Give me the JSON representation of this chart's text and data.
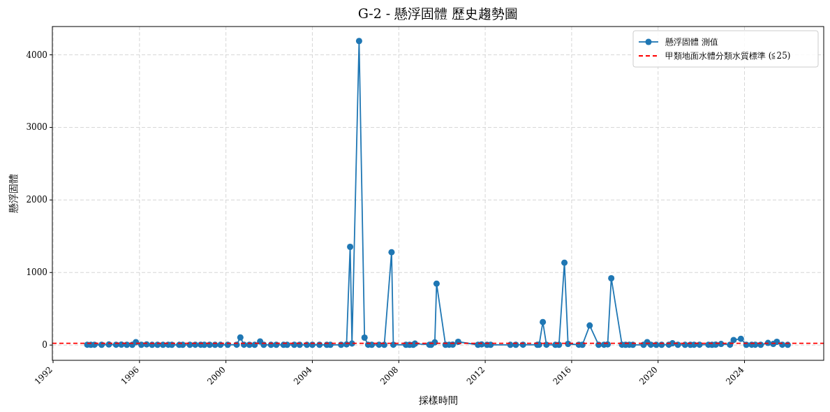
{
  "chart_data": {
    "type": "line",
    "title": "G-2 - 懸浮固體 歷史趨勢圖",
    "xlabel": "採樣時間",
    "ylabel": "懸浮固體",
    "x": [
      "1993-08",
      "1993-10",
      "1993-12",
      "1994-04",
      "1994-08",
      "1994-12",
      "1995-03",
      "1995-06",
      "1995-09",
      "1995-11",
      "1996-02",
      "1996-05",
      "1996-08",
      "1996-11",
      "1997-02",
      "1997-05",
      "1997-07",
      "1997-11",
      "1998-01",
      "1998-05",
      "1998-08",
      "1998-11",
      "1999-01",
      "1999-04",
      "1999-07",
      "1999-10",
      "2000-02",
      "2000-07",
      "2000-09",
      "2000-11",
      "2001-02",
      "2001-05",
      "2001-08",
      "2001-10",
      "2002-02",
      "2002-05",
      "2002-09",
      "2002-11",
      "2003-03",
      "2003-06",
      "2003-10",
      "2004-01",
      "2004-05",
      "2004-09",
      "2004-11",
      "2005-05",
      "2005-08",
      "2005-10",
      "2005-11",
      "2006-03",
      "2006-06",
      "2006-08",
      "2006-10",
      "2007-02",
      "2007-05",
      "2007-09",
      "2007-10",
      "2008-05",
      "2008-07",
      "2008-09",
      "2008-10",
      "2009-06",
      "2009-07",
      "2009-09",
      "2009-10",
      "2010-03",
      "2010-05",
      "2010-07",
      "2010-10",
      "2011-09",
      "2011-11",
      "2012-02",
      "2012-04",
      "2013-03",
      "2013-06",
      "2013-10",
      "2014-06",
      "2014-07",
      "2014-09",
      "2014-11",
      "2015-04",
      "2015-06",
      "2015-09",
      "2015-11",
      "2016-05",
      "2016-07",
      "2016-11",
      "2017-04",
      "2017-07",
      "2017-09",
      "2017-11",
      "2018-05",
      "2018-07",
      "2018-09",
      "2018-11",
      "2019-05",
      "2019-07",
      "2019-09",
      "2019-12",
      "2020-03",
      "2020-07",
      "2020-09",
      "2020-12",
      "2021-04",
      "2021-07",
      "2021-09",
      "2021-12",
      "2022-05",
      "2022-07",
      "2022-09",
      "2022-12",
      "2023-05",
      "2023-07",
      "2023-11",
      "2024-02",
      "2024-05",
      "2024-07",
      "2024-10",
      "2025-02",
      "2025-05",
      "2025-07",
      "2025-10",
      "2026-01"
    ],
    "series": [
      {
        "name": "懸浮固體 測值",
        "color": "#1f77b4",
        "values": [
          5,
          3,
          5,
          4,
          8,
          5,
          6,
          4,
          3,
          40,
          4,
          10,
          3,
          4,
          3,
          5,
          4,
          3,
          3,
          4,
          5,
          5,
          3,
          4,
          3,
          3,
          4,
          5,
          105,
          5,
          4,
          3,
          50,
          4,
          3,
          4,
          3,
          3,
          4,
          4,
          3,
          4,
          4,
          3,
          3,
          4,
          10,
          1354,
          22,
          4190,
          103,
          5,
          4,
          5,
          3,
          1280,
          5,
          4,
          3,
          4,
          20,
          5,
          4,
          38,
          847,
          4,
          5,
          6,
          45,
          4,
          10,
          3,
          4,
          3,
          4,
          5,
          4,
          5,
          318,
          5,
          3,
          4,
          1136,
          16,
          5,
          4,
          270,
          4,
          5,
          10,
          921,
          5,
          4,
          5,
          3,
          4,
          40,
          5,
          3,
          4,
          5,
          25,
          4,
          3,
          4,
          5,
          5,
          5,
          4,
          6,
          15,
          5,
          70,
          87,
          4,
          5,
          5,
          4,
          30,
          15,
          45,
          5,
          3
        ]
      }
    ],
    "ref_lines": [
      {
        "axis": "y",
        "value": 25,
        "label": "甲類地面水體分類水質標準 (≦25)",
        "color": "#ff0000",
        "line_style": "dashed"
      }
    ],
    "xlim": [
      "1991-12-20",
      "2027-09-01"
    ],
    "xticks": [
      {
        "value": "1992-01-01",
        "label": "1992"
      },
      {
        "value": "1996-01-01",
        "label": "1996"
      },
      {
        "value": "2000-01-01",
        "label": "2000"
      },
      {
        "value": "2004-01-01",
        "label": "2004"
      },
      {
        "value": "2008-01-01",
        "label": "2008"
      },
      {
        "value": "2012-01-01",
        "label": "2012"
      },
      {
        "value": "2016-01-01",
        "label": "2016"
      },
      {
        "value": "2020-01-01",
        "label": "2020"
      },
      {
        "value": "2024-01-01",
        "label": "2024"
      }
    ],
    "ylim": [
      -210,
      4390
    ],
    "yticks": [
      0,
      1000,
      2000,
      3000,
      4000
    ],
    "grid": true,
    "legend": "top right",
    "marker": "circle",
    "line_style": "solid"
  }
}
